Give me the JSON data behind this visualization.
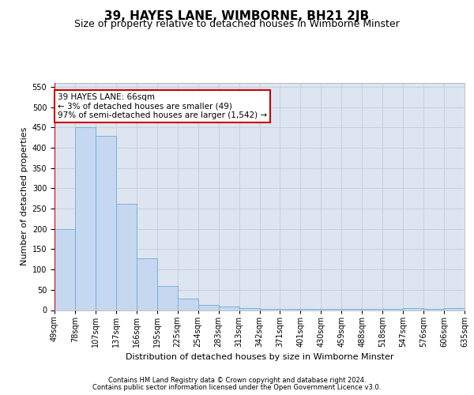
{
  "title": "39, HAYES LANE, WIMBORNE, BH21 2JB",
  "subtitle": "Size of property relative to detached houses in Wimborne Minster",
  "xlabel": "Distribution of detached houses by size in Wimborne Minster",
  "ylabel": "Number of detached properties",
  "footer1": "Contains HM Land Registry data © Crown copyright and database right 2024.",
  "footer2": "Contains public sector information licensed under the Open Government Licence v3.0.",
  "bin_labels": [
    "49sqm",
    "78sqm",
    "107sqm",
    "137sqm",
    "166sqm",
    "195sqm",
    "225sqm",
    "254sqm",
    "283sqm",
    "313sqm",
    "342sqm",
    "371sqm",
    "401sqm",
    "430sqm",
    "459sqm",
    "488sqm",
    "518sqm",
    "547sqm",
    "576sqm",
    "606sqm",
    "635sqm"
  ],
  "bar_values": [
    200,
    450,
    430,
    262,
    127,
    60,
    28,
    13,
    8,
    5,
    3,
    3,
    3,
    3,
    3,
    3,
    3,
    5,
    3,
    5
  ],
  "bar_color": "#c5d8f0",
  "bar_edge_color": "#6baed6",
  "vline_x_label": "49sqm",
  "property_label": "39 HAYES LANE: 66sqm",
  "annotation_line1": "← 3% of detached houses are smaller (49)",
  "annotation_line2": "97% of semi-detached houses are larger (1,542) →",
  "vline_color": "#cc0000",
  "annotation_box_edge": "#cc0000",
  "ylim": [
    0,
    560
  ],
  "yticks": [
    0,
    50,
    100,
    150,
    200,
    250,
    300,
    350,
    400,
    450,
    500,
    550
  ],
  "grid_color": "#c8d0e0",
  "bg_color": "#dde5f0",
  "title_fontsize": 11,
  "subtitle_fontsize": 9,
  "axis_label_fontsize": 8,
  "tick_fontsize": 7,
  "footer_fontsize": 6
}
